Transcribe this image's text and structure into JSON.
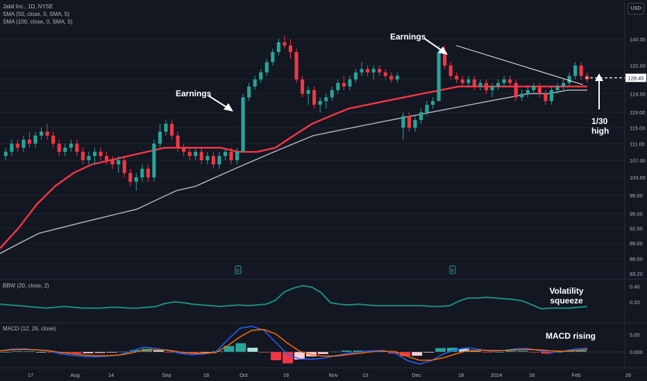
{
  "legend": {
    "symbol": "Jabil Inc., 1D, NYSE",
    "sma50": "SMA (50, close, 0, SMA, 5)",
    "sma100": "SMA (100, close, 0, SMA, 5)",
    "bbw": "BBW (20, close, 2)",
    "macd": "MACD (12, 26, close)"
  },
  "currency_button": "USD",
  "annotations": {
    "earnings_1": "Earnings",
    "earnings_2": "Earnings",
    "high_line1": "1/30",
    "high_line2": "high",
    "volatility_line1": "Volatility",
    "volatility_line2": "squeeze",
    "macd_rising": "MACD rising"
  },
  "colors": {
    "background": "#131722",
    "up": "#26a69a",
    "down": "#f23645",
    "sma50": "#f23645",
    "sma100": "#b2b5be",
    "bbw": "#1e8c80",
    "macd_line": "#2962ff",
    "signal_line": "#ff6d00"
  },
  "chart_data": {
    "type": "candlestick",
    "title": "Jabil Inc., 1D, NYSE",
    "price_axis": {
      "ticks": [
        140,
        132,
        128,
        124,
        119,
        115,
        111,
        107,
        103,
        99,
        95,
        92,
        89,
        86,
        83.2
      ],
      "labels": [
        "140.00",
        "132.00",
        "",
        "124.00",
        "119.00",
        "115.00",
        "111.00",
        "107.00",
        "103.00",
        "99.00",
        "95.00",
        "92.00",
        "89.00",
        "86.00",
        "83.20"
      ],
      "scale": "log",
      "last_price_label": "128.45",
      "last_price": 128.45
    },
    "x_axis": {
      "labels": [
        "17",
        "Aug",
        "14",
        "Sep",
        "18",
        "Oct",
        "16",
        "Nov",
        "13",
        "Dec",
        "18",
        "2024",
        "16",
        "Feb",
        "26"
      ]
    },
    "sma50_values": [
      88,
      92,
      97,
      101,
      104,
      106,
      107,
      108,
      109,
      110,
      110,
      110,
      110,
      109,
      109,
      110,
      113,
      116,
      118,
      120,
      121,
      122,
      123,
      124,
      125,
      126,
      126,
      126,
      126,
      126,
      126,
      126,
      126
    ],
    "sma100_values": [
      87,
      89,
      91,
      92,
      93,
      94,
      95,
      96,
      98,
      100,
      101,
      103,
      105,
      107,
      109,
      111,
      113,
      114,
      115,
      116,
      117,
      118,
      119,
      120,
      121,
      122,
      123,
      124,
      124,
      125,
      125
    ],
    "earnings_markers": [
      "E",
      "E"
    ],
    "bbw_axis": {
      "ticks": [
        0.4,
        0.2
      ],
      "labels": [
        "0.40",
        "0.20"
      ]
    },
    "bbw_values": [
      0.17,
      0.16,
      0.15,
      0.14,
      0.13,
      0.12,
      0.13,
      0.14,
      0.13,
      0.12,
      0.12,
      0.12,
      0.13,
      0.13,
      0.12,
      0.12,
      0.13,
      0.14,
      0.18,
      0.2,
      0.19,
      0.17,
      0.16,
      0.15,
      0.14,
      0.15,
      0.16,
      0.15,
      0.16,
      0.17,
      0.22,
      0.33,
      0.38,
      0.41,
      0.39,
      0.32,
      0.19,
      0.17,
      0.16,
      0.17,
      0.16,
      0.15,
      0.15,
      0.15,
      0.15,
      0.15,
      0.15,
      0.14,
      0.14,
      0.15,
      0.21,
      0.25,
      0.25,
      0.26,
      0.25,
      0.24,
      0.23,
      0.21,
      0.16,
      0.11,
      0.12,
      0.12,
      0.12,
      0.13,
      0.14
    ],
    "macd_axis": {
      "ticks": [
        5.0,
        0.0
      ],
      "labels": [
        "5.00",
        "0.000"
      ]
    },
    "macd_values": [
      0.3,
      0.8,
      0.9,
      0.6,
      0.3,
      -0.5,
      -1.0,
      -1.3,
      -1.4,
      -1.2,
      -0.8,
      0.2,
      1.4,
      1.0,
      0.4,
      -0.4,
      -0.8,
      -0.6,
      0.0,
      3.5,
      6.8,
      7.4,
      6.3,
      2.8,
      -0.8,
      -2.0,
      -2.1,
      -1.8,
      -1.1,
      -0.4,
      0.0,
      0.3,
      0.4,
      -0.4,
      -2.5,
      -3.5,
      -2.5,
      -0.6,
      0.6,
      1.2,
      0.7,
      0.2,
      0.4,
      0.9,
      1.0,
      0.4,
      -0.2,
      0.2,
      0.8,
      1.1
    ],
    "signal_values": [
      0.3,
      0.6,
      0.7,
      0.6,
      0.4,
      -0.1,
      -0.5,
      -0.9,
      -1.1,
      -1.1,
      -0.9,
      -0.3,
      0.5,
      0.6,
      0.5,
      0.0,
      -0.4,
      -0.4,
      -0.2,
      1.8,
      4.3,
      6.2,
      6.5,
      5.2,
      2.5,
      0.2,
      -0.8,
      -1.2,
      -1.2,
      -0.8,
      -0.4,
      0.0,
      0.2,
      0.1,
      -1.3,
      -2.4,
      -2.4,
      -1.7,
      -0.6,
      0.3,
      0.5,
      0.4,
      0.4,
      0.6,
      0.7,
      0.6,
      0.3,
      0.2,
      0.4,
      0.7
    ],
    "candles": [
      [
        108,
        110,
        107,
        109
      ],
      [
        109,
        112,
        108,
        111
      ],
      [
        111,
        112,
        109,
        110
      ],
      [
        110,
        113,
        109,
        112
      ],
      [
        112,
        114,
        110,
        111
      ],
      [
        111,
        114,
        110,
        113
      ],
      [
        113,
        115,
        112,
        114
      ],
      [
        114,
        116,
        112,
        113
      ],
      [
        113,
        114,
        110,
        111
      ],
      [
        111,
        112,
        108,
        109
      ],
      [
        109,
        111,
        108,
        110
      ],
      [
        110,
        112,
        109,
        111
      ],
      [
        111,
        112,
        108,
        109
      ],
      [
        109,
        110,
        106,
        107
      ],
      [
        107,
        109,
        106,
        108
      ],
      [
        108,
        110,
        106,
        109
      ],
      [
        109,
        110,
        107,
        108
      ],
      [
        108,
        109,
        106,
        107
      ],
      [
        107,
        108,
        105,
        106
      ],
      [
        106,
        108,
        104,
        107
      ],
      [
        107,
        108,
        103,
        104
      ],
      [
        104,
        105,
        101,
        102
      ],
      [
        102,
        104,
        100,
        103
      ],
      [
        103,
        106,
        102,
        105
      ],
      [
        105,
        106,
        102,
        103
      ],
      [
        103,
        112,
        102,
        111
      ],
      [
        111,
        116,
        110,
        114
      ],
      [
        114,
        117,
        113,
        116
      ],
      [
        116,
        117,
        112,
        113
      ],
      [
        113,
        114,
        109,
        110
      ],
      [
        110,
        111,
        108,
        109
      ],
      [
        109,
        110,
        107,
        108
      ],
      [
        108,
        110,
        107,
        109
      ],
      [
        109,
        110,
        106,
        107
      ],
      [
        107,
        109,
        106,
        108
      ],
      [
        108,
        109,
        105,
        106
      ],
      [
        106,
        109,
        105,
        108
      ],
      [
        108,
        110,
        107,
        109
      ],
      [
        109,
        110,
        106,
        107
      ],
      [
        107,
        110,
        106,
        109
      ],
      [
        109,
        124,
        109,
        123
      ],
      [
        123,
        127,
        122,
        126
      ],
      [
        126,
        129,
        125,
        128
      ],
      [
        128,
        131,
        127,
        130
      ],
      [
        130,
        134,
        129,
        133
      ],
      [
        133,
        137,
        132,
        136
      ],
      [
        136,
        140,
        135,
        139
      ],
      [
        139,
        141,
        137,
        138
      ],
      [
        138,
        140,
        134,
        136
      ],
      [
        136,
        137,
        127,
        128
      ],
      [
        128,
        129,
        123,
        124
      ],
      [
        124,
        126,
        121,
        125
      ],
      [
        125,
        126,
        120,
        121
      ],
      [
        121,
        123,
        119,
        122
      ],
      [
        122,
        124,
        120,
        123
      ],
      [
        123,
        126,
        122,
        125
      ],
      [
        125,
        128,
        124,
        127
      ],
      [
        127,
        129,
        125,
        126
      ],
      [
        126,
        129,
        125,
        128
      ],
      [
        128,
        131,
        127,
        130
      ],
      [
        130,
        133,
        129,
        131
      ],
      [
        131,
        132,
        129,
        130
      ],
      [
        130,
        132,
        128,
        131
      ],
      [
        131,
        132,
        129,
        130
      ],
      [
        130,
        131,
        128,
        129
      ],
      [
        129,
        130,
        127,
        128
      ],
      [
        128,
        130,
        127,
        129
      ],
      [
        115,
        119,
        112,
        118
      ],
      [
        118,
        119,
        114,
        115
      ],
      [
        115,
        118,
        114,
        117
      ],
      [
        117,
        120,
        116,
        119
      ],
      [
        119,
        122,
        118,
        121
      ],
      [
        121,
        123,
        120,
        122
      ],
      [
        122,
        138,
        122,
        136
      ],
      [
        136,
        138,
        131,
        132
      ],
      [
        132,
        133,
        128,
        129
      ],
      [
        129,
        130,
        127,
        128
      ],
      [
        128,
        129,
        126,
        127
      ],
      [
        127,
        129,
        126,
        128
      ],
      [
        128,
        129,
        125,
        126
      ],
      [
        126,
        128,
        125,
        127
      ],
      [
        127,
        128,
        124,
        125
      ],
      [
        125,
        127,
        123,
        126
      ],
      [
        126,
        128,
        125,
        127
      ],
      [
        127,
        129,
        126,
        128
      ],
      [
        128,
        129,
        126,
        127
      ],
      [
        127,
        128,
        122,
        123
      ],
      [
        123,
        125,
        122,
        124
      ],
      [
        124,
        126,
        123,
        125
      ],
      [
        125,
        127,
        124,
        126
      ],
      [
        126,
        127,
        123,
        124
      ],
      [
        124,
        125,
        121,
        122
      ],
      [
        122,
        126,
        121,
        125
      ],
      [
        125,
        127,
        124,
        126
      ],
      [
        126,
        128,
        125,
        127
      ],
      [
        127,
        130,
        126,
        129
      ],
      [
        129,
        133,
        128,
        132
      ],
      [
        132,
        133,
        128,
        129
      ],
      [
        129,
        130,
        127,
        128
      ]
    ]
  }
}
